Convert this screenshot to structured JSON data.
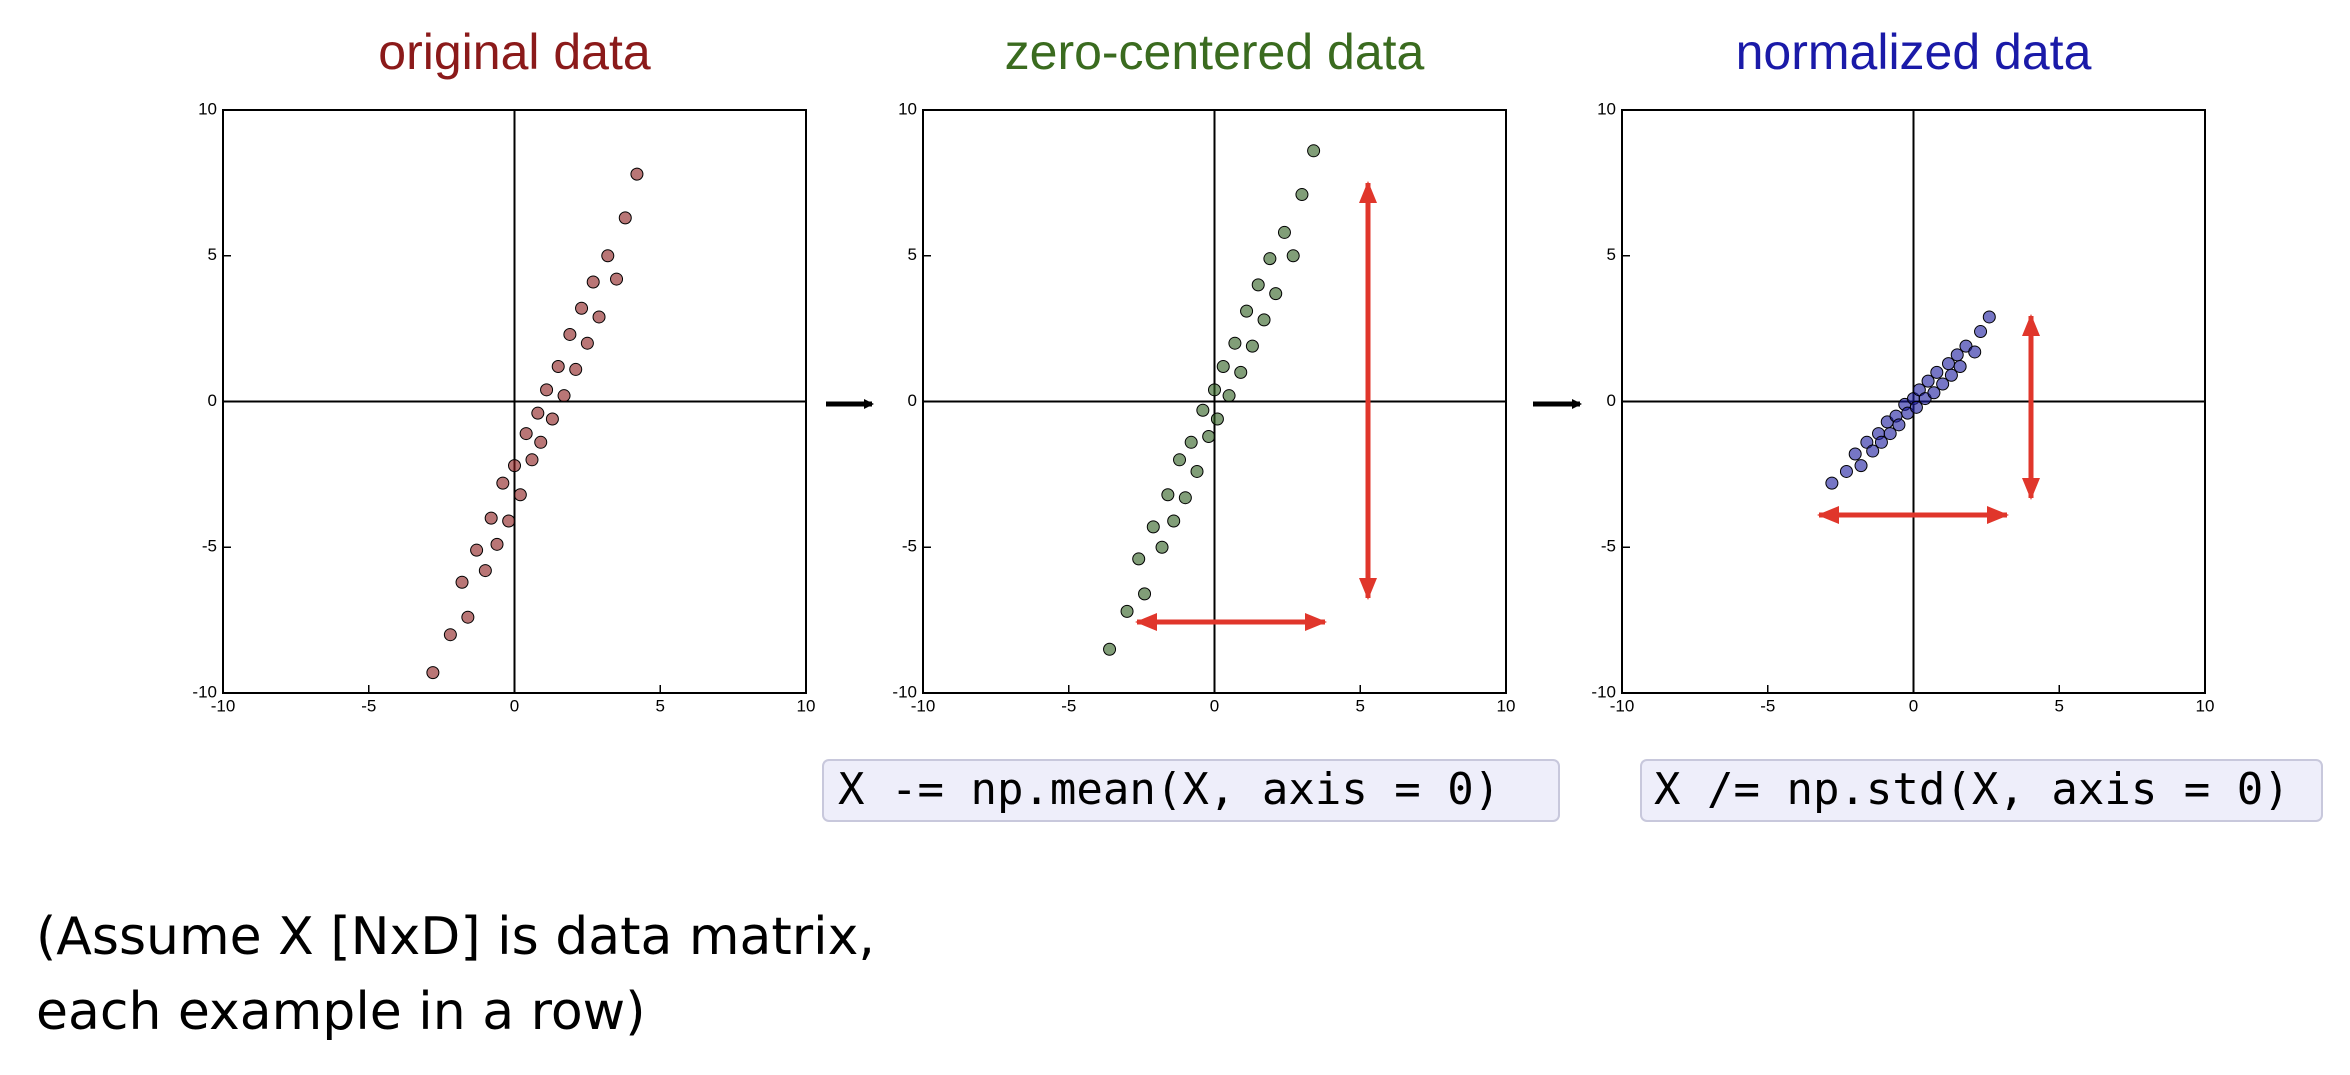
{
  "chart_data": [
    {
      "type": "scatter",
      "title": "original data",
      "title_color": "#8b1a1a",
      "color": "#8b1a1a",
      "xlim": [
        -10,
        10
      ],
      "ylim": [
        -10,
        10
      ],
      "xticks": [
        -10,
        -5,
        0,
        5,
        10
      ],
      "yticks": [
        -10,
        -5,
        0,
        5,
        10
      ],
      "x": [
        -2.8,
        -2.2,
        -1.8,
        -1.6,
        -1.3,
        -1.0,
        -0.8,
        -0.6,
        -0.4,
        -0.2,
        0.0,
        0.2,
        0.4,
        0.6,
        0.8,
        0.9,
        1.1,
        1.3,
        1.5,
        1.7,
        1.9,
        2.1,
        2.3,
        2.5,
        2.7,
        2.9,
        3.2,
        3.5,
        3.8,
        4.2
      ],
      "values": [
        -9.3,
        -8.0,
        -6.2,
        -7.4,
        -5.1,
        -5.8,
        -4.0,
        -4.9,
        -2.8,
        -4.1,
        -2.2,
        -3.2,
        -1.1,
        -2.0,
        -0.4,
        -1.4,
        0.4,
        -0.6,
        1.2,
        0.2,
        2.3,
        1.1,
        3.2,
        2.0,
        4.1,
        2.9,
        5.0,
        4.2,
        6.3,
        7.8
      ]
    },
    {
      "type": "scatter",
      "title": "zero-centered data",
      "title_color": "#3a6b1f",
      "color": "#2d5e1e",
      "xlim": [
        -10,
        10
      ],
      "ylim": [
        -10,
        10
      ],
      "xticks": [
        -10,
        -5,
        0,
        5,
        10
      ],
      "yticks": [
        -10,
        -5,
        0,
        5,
        10
      ],
      "x": [
        -3.6,
        -3.0,
        -2.6,
        -2.4,
        -2.1,
        -1.8,
        -1.6,
        -1.4,
        -1.2,
        -1.0,
        -0.8,
        -0.6,
        -0.4,
        -0.2,
        0.0,
        0.1,
        0.3,
        0.5,
        0.7,
        0.9,
        1.1,
        1.3,
        1.5,
        1.7,
        1.9,
        2.1,
        2.4,
        2.7,
        3.0,
        3.4
      ],
      "values": [
        -8.5,
        -7.2,
        -5.4,
        -6.6,
        -4.3,
        -5.0,
        -3.2,
        -4.1,
        -2.0,
        -3.3,
        -1.4,
        -2.4,
        -0.3,
        -1.2,
        0.4,
        -0.6,
        1.2,
        0.2,
        2.0,
        1.0,
        3.1,
        1.9,
        4.0,
        2.8,
        4.9,
        3.7,
        5.8,
        5.0,
        7.1,
        8.6
      ]
    },
    {
      "type": "scatter",
      "title": "normalized data",
      "title_color": "#1a1aa8",
      "color": "#1a1a9e",
      "xlim": [
        -10,
        10
      ],
      "ylim": [
        -10,
        10
      ],
      "xticks": [
        -10,
        -5,
        0,
        5,
        10
      ],
      "yticks": [
        -10,
        -5,
        0,
        5,
        10
      ],
      "x": [
        -2.8,
        -2.3,
        -2.0,
        -1.8,
        -1.6,
        -1.4,
        -1.2,
        -1.1,
        -0.9,
        -0.8,
        -0.6,
        -0.5,
        -0.3,
        -0.2,
        0.0,
        0.1,
        0.2,
        0.4,
        0.5,
        0.7,
        0.8,
        1.0,
        1.2,
        1.3,
        1.5,
        1.6,
        1.8,
        2.1,
        2.3,
        2.6
      ],
      "values": [
        -2.8,
        -2.4,
        -1.8,
        -2.2,
        -1.4,
        -1.7,
        -1.1,
        -1.4,
        -0.7,
        -1.1,
        -0.5,
        -0.8,
        -0.1,
        -0.4,
        0.1,
        -0.2,
        0.4,
        0.1,
        0.7,
        0.3,
        1.0,
        0.6,
        1.3,
        0.9,
        1.6,
        1.2,
        1.9,
        1.7,
        2.4,
        2.9
      ]
    }
  ],
  "code": [
    "X -= np.mean(X, axis = 0)",
    "X /= np.std(X, axis = 0)"
  ],
  "caption": [
    "(Assume X [NxD] is data matrix,",
    "each example in a row)"
  ]
}
